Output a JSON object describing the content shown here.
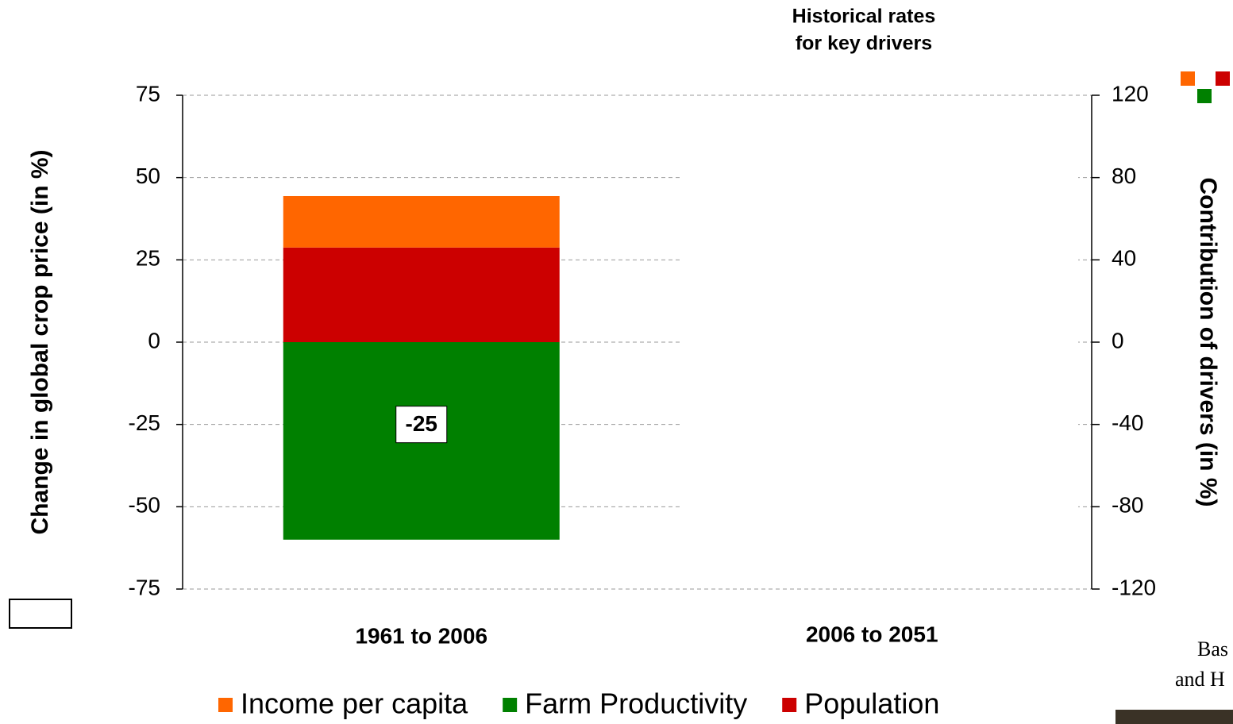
{
  "chart_data": {
    "type": "bar",
    "title": "Historical rates\nfor key drivers",
    "y_label": "Change in global crop price (in %)",
    "y2_label": "Contribution of drivers  (in %)",
    "categories": [
      "1961 to 2006",
      "2006 to 2051"
    ],
    "series": [
      {
        "name": "Income per capita",
        "color": "#ff6600",
        "axis": "y2",
        "values": [
          25,
          null
        ]
      },
      {
        "name": "Farm Productivity",
        "color": "#008000",
        "axis": "y2",
        "values": [
          -96,
          null
        ]
      },
      {
        "name": "Population",
        "color": "#cc0000",
        "axis": "y2",
        "values": [
          46,
          null
        ]
      }
    ],
    "net_values": [
      -25,
      null
    ],
    "ylim": [
      -75,
      75
    ],
    "yticks": [
      -75,
      -50,
      -25,
      0,
      25,
      50,
      75
    ],
    "y2lim": [
      -120,
      120
    ],
    "y2ticks": [
      -120,
      -80,
      -40,
      0,
      40,
      80,
      120
    ],
    "grid": true,
    "stacked": true,
    "legend": "bottom",
    "side_text": [
      "Bas",
      "and H"
    ]
  }
}
